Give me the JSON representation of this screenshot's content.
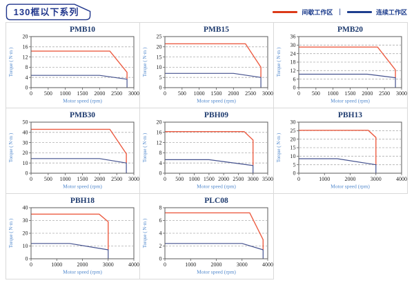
{
  "header": {
    "title": "130框以下系列"
  },
  "legend": {
    "separator": "|",
    "items": [
      {
        "label": "间歇工作区",
        "key": "intermittent"
      },
      {
        "label": "连续工作区",
        "key": "continuous"
      }
    ]
  },
  "colors": {
    "legend_intermittent": "#dc3918",
    "legend_continuous": "#1e3e8e",
    "line_intermittent": "#ec5c42",
    "line_continuous": "#44518e",
    "title_navy": "#1d3a6e",
    "axis_label_blue": "#4f87cc",
    "tick_text": "#222222",
    "grid_gray": "#adadad",
    "plot_border": "#5a5a5a"
  },
  "chart_defaults": {
    "xlabel": "Motor speed (rpm)",
    "ylabel": "Torque ( N·m )",
    "grid": "dashed-horizontal"
  },
  "chart_data": [
    {
      "type": "line",
      "title": "PMB10",
      "xlabel": "Motor speed (rpm)",
      "ylabel": "Torque ( N·m )",
      "xlim": [
        0,
        3000
      ],
      "ylim": [
        0,
        20
      ],
      "xticks": [
        0,
        500,
        1000,
        1500,
        2000,
        2500,
        3000
      ],
      "yticks": [
        0,
        4,
        8,
        12,
        16,
        20
      ],
      "series": [
        {
          "name": "间歇工作区",
          "color_key": "line_intermittent",
          "points": [
            [
              0,
              14.3
            ],
            [
              2300,
              14.3
            ],
            [
              2800,
              6
            ],
            [
              2800,
              3.3
            ]
          ]
        },
        {
          "name": "连续工作区",
          "color_key": "line_continuous",
          "points": [
            [
              0,
              4.8
            ],
            [
              2000,
              4.8
            ],
            [
              2800,
              3.3
            ],
            [
              2800,
              0
            ]
          ]
        }
      ]
    },
    {
      "type": "line",
      "title": "PMB15",
      "xlabel": "Motor speed (rpm)",
      "ylabel": "Torque ( N·m )",
      "xlim": [
        0,
        3000
      ],
      "ylim": [
        0,
        25
      ],
      "xticks": [
        0,
        500,
        1000,
        1500,
        2000,
        2500,
        3000
      ],
      "yticks": [
        0,
        5,
        10,
        15,
        20,
        25
      ],
      "series": [
        {
          "name": "间歇工作区",
          "color_key": "line_intermittent",
          "points": [
            [
              0,
              21.5
            ],
            [
              2350,
              21.5
            ],
            [
              2800,
              10
            ],
            [
              2800,
              5
            ]
          ]
        },
        {
          "name": "连续工作区",
          "color_key": "line_continuous",
          "points": [
            [
              0,
              7
            ],
            [
              2000,
              7
            ],
            [
              2800,
              5
            ],
            [
              2800,
              0
            ]
          ]
        }
      ]
    },
    {
      "type": "line",
      "title": "PMB20",
      "xlabel": "Motor speed (rpm)",
      "ylabel": "Torque ( N·m )",
      "xlim": [
        0,
        3000
      ],
      "ylim": [
        0,
        36
      ],
      "xticks": [
        0,
        500,
        1000,
        1500,
        2000,
        2500,
        3000
      ],
      "yticks": [
        0,
        6,
        12,
        18,
        24,
        30,
        36
      ],
      "series": [
        {
          "name": "间歇工作区",
          "color_key": "line_intermittent",
          "points": [
            [
              0,
              28.6
            ],
            [
              2300,
              28.6
            ],
            [
              2820,
              12.5
            ],
            [
              2820,
              7
            ]
          ]
        },
        {
          "name": "连续工作区",
          "color_key": "line_continuous",
          "points": [
            [
              0,
              9.5
            ],
            [
              2000,
              9.5
            ],
            [
              2820,
              7
            ],
            [
              2820,
              0
            ]
          ]
        }
      ]
    },
    {
      "type": "line",
      "title": "PMB30",
      "xlabel": "Motor speed (rpm)",
      "ylabel": "Torque ( N·m )",
      "xlim": [
        0,
        3000
      ],
      "ylim": [
        0,
        50
      ],
      "xticks": [
        0,
        500,
        1000,
        1500,
        2000,
        2500,
        3000
      ],
      "yticks": [
        0,
        10,
        20,
        30,
        40,
        50
      ],
      "series": [
        {
          "name": "间歇工作区",
          "color_key": "line_intermittent",
          "points": [
            [
              0,
              43
            ],
            [
              2300,
              43
            ],
            [
              2780,
              19
            ],
            [
              2780,
              10
            ]
          ]
        },
        {
          "name": "连续工作区",
          "color_key": "line_continuous",
          "points": [
            [
              0,
              14.3
            ],
            [
              2000,
              14.3
            ],
            [
              2780,
              10
            ],
            [
              2780,
              0
            ]
          ]
        }
      ]
    },
    {
      "type": "line",
      "title": "PBH09",
      "xlabel": "Motor speed (rpm)",
      "ylabel": "Torque ( N·m )",
      "xlim": [
        0,
        3500
      ],
      "ylim": [
        0,
        20
      ],
      "xticks": [
        0,
        500,
        1000,
        1500,
        2000,
        2500,
        3000,
        3500
      ],
      "yticks": [
        0,
        4,
        8,
        12,
        16,
        20
      ],
      "series": [
        {
          "name": "间歇工作区",
          "color_key": "line_intermittent",
          "points": [
            [
              0,
              16.3
            ],
            [
              2700,
              16.3
            ],
            [
              3000,
              13
            ],
            [
              3000,
              3
            ]
          ]
        },
        {
          "name": "连续工作区",
          "color_key": "line_continuous",
          "points": [
            [
              0,
              5.3
            ],
            [
              1500,
              5.3
            ],
            [
              3000,
              3
            ],
            [
              3000,
              0
            ]
          ]
        }
      ]
    },
    {
      "type": "line",
      "title": "PBH13",
      "xlabel": "Motor speed (rpm)",
      "ylabel": "Torque ( N·m )",
      "xlim": [
        0,
        4000
      ],
      "ylim": [
        0,
        30
      ],
      "xticks": [
        0,
        1000,
        2000,
        3000,
        4000
      ],
      "yticks": [
        0,
        5,
        10,
        15,
        20,
        25,
        30
      ],
      "series": [
        {
          "name": "间歇工作区",
          "color_key": "line_intermittent",
          "points": [
            [
              0,
              25.2
            ],
            [
              2700,
              25.2
            ],
            [
              3000,
              21
            ],
            [
              3000,
              5
            ]
          ]
        },
        {
          "name": "连续工作区",
          "color_key": "line_continuous",
          "points": [
            [
              0,
              8.5
            ],
            [
              1500,
              8.5
            ],
            [
              3000,
              5
            ],
            [
              3000,
              0
            ]
          ]
        }
      ]
    },
    {
      "type": "line",
      "title": "PBH18",
      "xlabel": "Motor speed (rpm)",
      "ylabel": "Torque ( N·m )",
      "xlim": [
        0,
        4000
      ],
      "ylim": [
        0,
        40
      ],
      "xticks": [
        0,
        1000,
        2000,
        3000,
        4000
      ],
      "yticks": [
        0,
        10,
        20,
        30,
        40
      ],
      "series": [
        {
          "name": "间歇工作区",
          "color_key": "line_intermittent",
          "points": [
            [
              0,
              35
            ],
            [
              2650,
              35
            ],
            [
              3000,
              29
            ],
            [
              3000,
              7
            ]
          ]
        },
        {
          "name": "连续工作区",
          "color_key": "line_continuous",
          "points": [
            [
              0,
              12
            ],
            [
              1500,
              12
            ],
            [
              3000,
              7
            ],
            [
              3000,
              0
            ]
          ]
        }
      ]
    },
    {
      "type": "line",
      "title": "PLC08",
      "xlabel": "Motor speed (rpm)",
      "ylabel": "Torque ( N·m )",
      "xlim": [
        0,
        4000
      ],
      "ylim": [
        0,
        8
      ],
      "xticks": [
        0,
        1000,
        2000,
        3000,
        4000
      ],
      "yticks": [
        0,
        2,
        4,
        6,
        8
      ],
      "series": [
        {
          "name": "间歇工作区",
          "color_key": "line_intermittent",
          "points": [
            [
              0,
              7.2
            ],
            [
              3300,
              7.2
            ],
            [
              3820,
              3
            ],
            [
              3820,
              1.4
            ]
          ]
        },
        {
          "name": "连续工作区",
          "color_key": "line_continuous",
          "points": [
            [
              0,
              2.4
            ],
            [
              3000,
              2.4
            ],
            [
              3820,
              1.4
            ],
            [
              3820,
              0
            ]
          ]
        }
      ]
    }
  ]
}
